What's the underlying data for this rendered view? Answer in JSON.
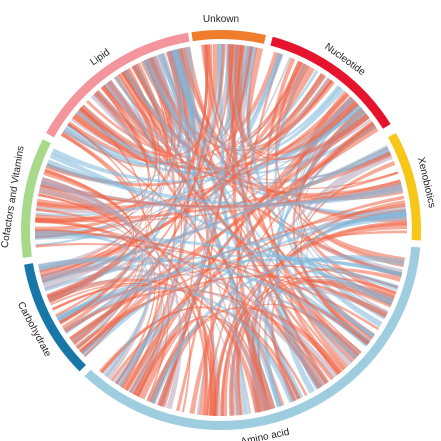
{
  "diagram": {
    "type": "chord",
    "groups": [
      {
        "id": "unkown",
        "label": "Unkown",
        "color": "#f07d2c"
      },
      {
        "id": "nucleotide",
        "label": "Nucleotide",
        "color": "#e5142c"
      },
      {
        "id": "xenobiotics",
        "label": "Xenobiotics",
        "color": "#f7c718"
      },
      {
        "id": "amino-acid",
        "label": "Amino acid",
        "color": "#9fcde0"
      },
      {
        "id": "carbohydrate",
        "label": "Carbohydrate",
        "color": "#1677a8"
      },
      {
        "id": "cofactors-vitamins",
        "label": "Cofactors and Vitamins",
        "color": "#a7d98a"
      },
      {
        "id": "lipid",
        "label": "Lipid",
        "color": "#f4959e"
      }
    ],
    "link_colors": {
      "positive": "#f06446",
      "negative": "#7fb8dc",
      "mixed": "#b4a4b8"
    }
  }
}
